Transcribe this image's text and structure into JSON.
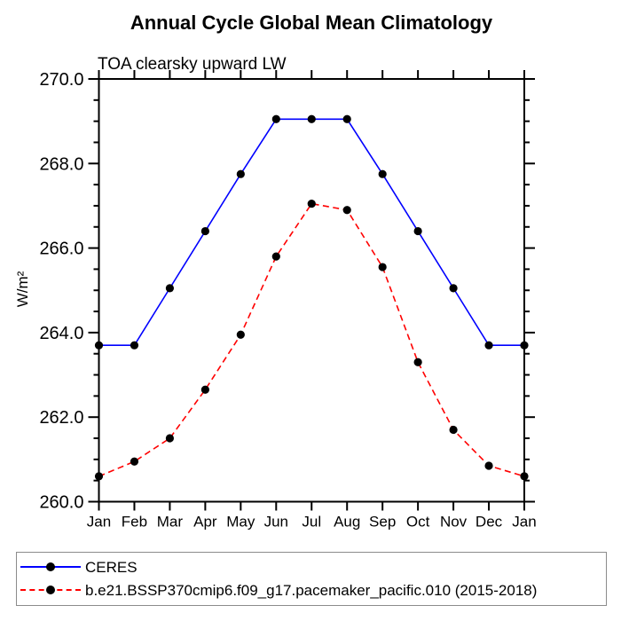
{
  "chart_data": {
    "type": "line",
    "title": "Annual Cycle Global Mean Climatology",
    "subtitle": "TOA clearsky upward LW",
    "categories": [
      "Jan",
      "Feb",
      "Mar",
      "Apr",
      "May",
      "Jun",
      "Jul",
      "Aug",
      "Sep",
      "Oct",
      "Nov",
      "Dec",
      "Jan"
    ],
    "series": [
      {
        "name": "CERES",
        "color": "#0000ff",
        "line_style": "solid",
        "marker": "filled-black-circle",
        "values": [
          263.7,
          263.7,
          265.05,
          266.4,
          267.75,
          269.05,
          269.05,
          269.05,
          267.75,
          266.4,
          265.05,
          263.7,
          263.7
        ]
      },
      {
        "name": "b.e21.BSSP370cmip6.f09_g17.pacemaker_pacific.010 (2015-2018)",
        "color": "#ff0000",
        "line_style": "dashed",
        "marker": "filled-black-circle",
        "values": [
          260.6,
          260.95,
          261.5,
          262.65,
          263.95,
          265.8,
          267.05,
          266.9,
          265.55,
          263.3,
          261.7,
          260.85,
          260.6
        ]
      }
    ],
    "xlabel": "",
    "ylabel": "W/m²",
    "ylim": [
      260.0,
      270.0
    ],
    "ytick_major_interval": 2.0,
    "ytick_minor_interval": 0.5,
    "ytick_labels": [
      "270.0",
      "268.0",
      "266.0",
      "264.0",
      "262.0",
      "260.0"
    ],
    "grid": false,
    "legend_position": "bottom-box",
    "axis_color": "#000000",
    "marker_color": "#000000"
  }
}
